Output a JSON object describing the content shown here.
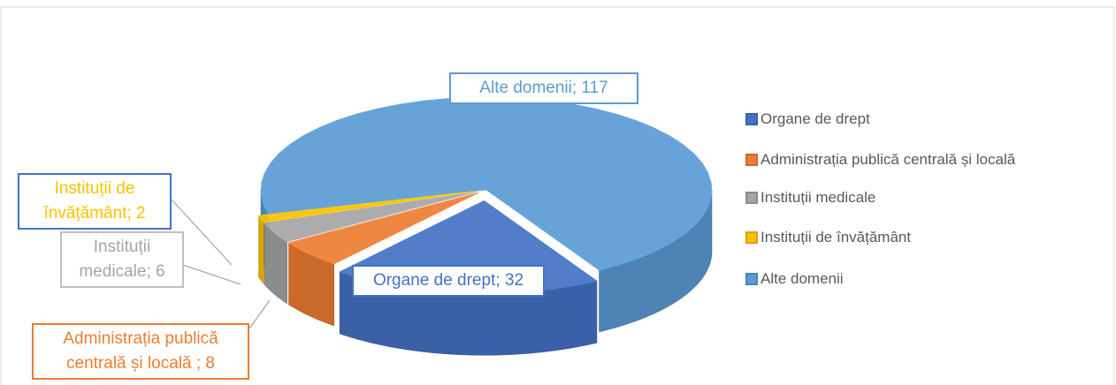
{
  "chart_data": {
    "type": "pie",
    "three_d": true,
    "categories": [
      "Organe de drept",
      "Administrația publică centrală și locală",
      "Instituții medicale",
      "Instituții de învățământ",
      "Alte domenii"
    ],
    "values": [
      32,
      8,
      6,
      2,
      117
    ],
    "value_labels": [
      "Organe de drept; 32",
      "Administrația publică centrală și locală ; 8",
      "Instituții medicale; 6",
      "Instituții de învățământ; 2",
      "Alte domenii; 117"
    ],
    "colors": [
      "#4472c4",
      "#ed7d31",
      "#a5a5a5",
      "#ffc000",
      "#5b9bd5"
    ],
    "legend": "right"
  }
}
